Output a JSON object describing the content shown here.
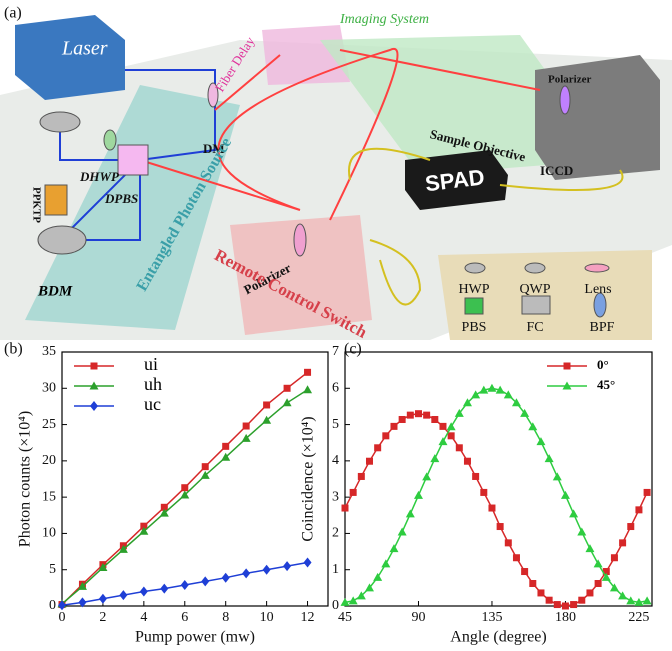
{
  "diagram": {
    "panel_label": "(a)",
    "laser": "Laser",
    "fiber_delay": "Fiber Delay",
    "imaging_system": "Imaging System",
    "polarizer_top": "Polarizer",
    "sample_objective": "Sample Objective",
    "iccd": "ICCD",
    "dm": "DM",
    "dhwp": "DHWP",
    "ppktp": "PPKTP",
    "dpbs": "DPBS",
    "source": "Entangled Photon Source",
    "bdm": "BDM",
    "spad": "SPAD",
    "polarizer_bottom": "Polarizer",
    "switch": "Remote Control Switch",
    "legend": {
      "hwp": "HWP",
      "qwp": "QWP",
      "lens": "Lens",
      "pbs": "PBS",
      "fc": "FC",
      "bpf": "BPF"
    }
  },
  "chart_data": [
    {
      "type": "line",
      "panel_label": "(b)",
      "xlabel": "Pump power (mw)",
      "ylabel": "Photon counts (×10⁴)",
      "xlim": [
        0,
        13
      ],
      "ylim": [
        0,
        35
      ],
      "xticks": [
        0,
        2,
        4,
        6,
        8,
        10,
        12
      ],
      "yticks": [
        0,
        5,
        10,
        15,
        20,
        25,
        30,
        35
      ],
      "legend": "upper left",
      "x": [
        0,
        1,
        2,
        3,
        4,
        5,
        6,
        7,
        8,
        9,
        10,
        11,
        12
      ],
      "series": [
        {
          "name": "ui",
          "color": "#d62728",
          "marker": "square",
          "values": [
            0.2,
            3,
            5.7,
            8.3,
            11,
            13.6,
            16.3,
            19.2,
            22,
            24.8,
            27.7,
            30,
            32.2
          ]
        },
        {
          "name": "uh",
          "color": "#2ca02c",
          "marker": "triangle",
          "values": [
            0.3,
            2.7,
            5.3,
            7.8,
            10.3,
            12.8,
            15.3,
            18,
            20.5,
            23.1,
            25.6,
            28,
            29.8
          ]
        },
        {
          "name": "uc",
          "color": "#1f3fd6",
          "marker": "diamond",
          "values": [
            0.1,
            0.5,
            1,
            1.5,
            2,
            2.4,
            2.9,
            3.4,
            3.9,
            4.5,
            5,
            5.5,
            6
          ]
        }
      ]
    },
    {
      "type": "line",
      "panel_label": "(c)",
      "xlabel": "Angle (degree)",
      "ylabel": "Coincidence (×10⁴)",
      "xlim": [
        45,
        233
      ],
      "ylim": [
        0,
        7
      ],
      "xticks": [
        45,
        90,
        135,
        180,
        225
      ],
      "yticks": [
        0,
        1,
        2,
        3,
        4,
        5,
        6,
        7
      ],
      "legend": "upper right",
      "x": [
        45,
        50,
        55,
        60,
        65,
        70,
        75,
        80,
        85,
        90,
        95,
        100,
        105,
        110,
        115,
        120,
        125,
        130,
        135,
        140,
        145,
        150,
        155,
        160,
        165,
        170,
        175,
        180,
        185,
        190,
        195,
        200,
        205,
        210,
        215,
        220,
        225,
        230
      ],
      "series": [
        {
          "name": "0°",
          "color": "#d62728",
          "marker": "square",
          "values": [
            2.7,
            3.13,
            3.57,
            3.99,
            4.36,
            4.69,
            4.95,
            5.14,
            5.26,
            5.3,
            5.26,
            5.14,
            4.95,
            4.69,
            4.36,
            3.99,
            3.57,
            3.13,
            2.7,
            2.19,
            1.74,
            1.33,
            0.95,
            0.62,
            0.36,
            0.16,
            0.04,
            0,
            0.04,
            0.16,
            0.36,
            0.62,
            0.95,
            1.33,
            1.74,
            2.19,
            2.65,
            3.13
          ]
        },
        {
          "name": "45°",
          "color": "#2ecc40",
          "marker": "triangle",
          "values": [
            0.1,
            0.14,
            0.28,
            0.5,
            0.79,
            1.16,
            1.58,
            2.04,
            2.54,
            3.05,
            3.56,
            4.06,
            4.53,
            4.94,
            5.31,
            5.6,
            5.82,
            5.95,
            6,
            5.95,
            5.82,
            5.6,
            5.31,
            4.94,
            4.53,
            4.06,
            3.56,
            3.05,
            2.54,
            2.04,
            1.58,
            1.16,
            0.79,
            0.5,
            0.28,
            0.14,
            0.1,
            0.14
          ]
        }
      ]
    }
  ]
}
